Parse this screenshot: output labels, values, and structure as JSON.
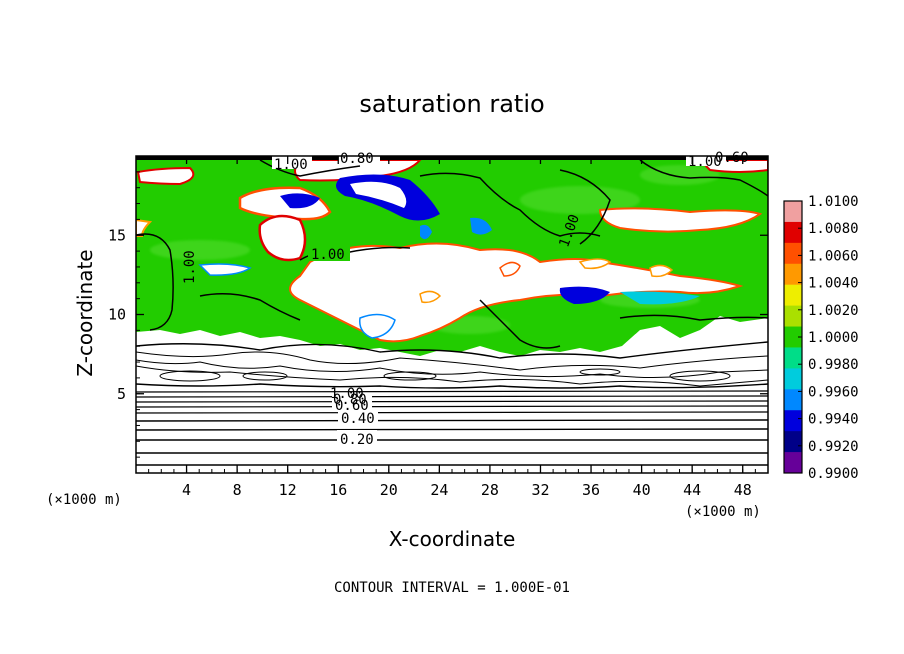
{
  "chart_data": {
    "type": "heatmap",
    "title": "saturation ratio",
    "xlabel": "X-coordinate",
    "ylabel": "Z-coordinate",
    "x_unit": "(×1000 m)",
    "y_unit": "(×1000 m)",
    "xlim": [
      0,
      50
    ],
    "ylim": [
      0,
      20
    ],
    "x_ticks": [
      4,
      8,
      12,
      16,
      20,
      24,
      28,
      32,
      36,
      40,
      44,
      48
    ],
    "y_ticks": [
      5,
      10,
      15
    ],
    "contour_interval_text": "CONTOUR INTERVAL = 1.000E-01",
    "contour_labels": [
      "0.20",
      "0.40",
      "0.60",
      "0.80",
      "1.00"
    ],
    "colorbar": {
      "levels": [
        "1.0100",
        "1.0080",
        "1.0060",
        "1.0040",
        "1.0020",
        "1.0000",
        "0.9980",
        "0.9960",
        "0.9940",
        "0.9920",
        "0.9900"
      ],
      "colors": [
        "#f0a0a0",
        "#e00000",
        "#ff5000",
        "#ff9900",
        "#eeee00",
        "#aae000",
        "#22cc00",
        "#00dd88",
        "#00ccdd",
        "#0088ff",
        "#0000dd",
        "#000088",
        "#660099"
      ]
    },
    "fill_colors": {
      "background": "#22cc00",
      "supersaturated": "#ffffff",
      "dry": "#ffffff"
    }
  }
}
